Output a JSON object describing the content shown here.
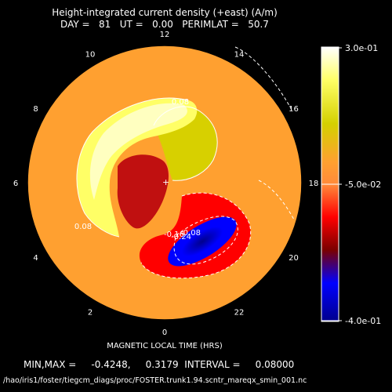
{
  "header": {
    "title": "Height-integrated current density (+east) (A/m)",
    "subtitle": "DAY =   81   UT =   0.00   PERIMLAT =   50.7"
  },
  "footer": {
    "xlabel": "MAGNETIC LOCAL TIME (HRS)",
    "minmax": "MIN,MAX =     -0.4248,     0.3179  INTERVAL =     0.08000",
    "filepath": "/hao/iris1/foster/tiegcm_diags/proc/FOSTER.trunk1.94.scntr_mareqx_smin_001.nc"
  },
  "colorbar": {
    "max_label": "3.0e-01",
    "mid_label": "-5.0e-02",
    "min_label": "-4.0e-01",
    "stops": [
      "#ffffff",
      "#ffff66",
      "#d4d000",
      "#ffa030",
      "#ff8a3a",
      "#ff0000",
      "#7a0000",
      "#0000ff",
      "#00008c"
    ]
  },
  "chart_data": {
    "type": "heatmap",
    "projection": "polar (magnetic local time)",
    "title": "Height-integrated current density (+east) (A/m)",
    "xlabel": "MAGNETIC LOCAL TIME (HRS)",
    "hour_ticks": [
      "0",
      "2",
      "4",
      "6",
      "8",
      "10",
      "12",
      "14",
      "16",
      "18",
      "20",
      "22"
    ],
    "min": -0.4248,
    "max": 0.3179,
    "interval": 0.08,
    "color_range": [
      -0.4,
      0.3
    ],
    "contour_labels": [
      "0.08",
      "0.08",
      "-0.08",
      "-0.24",
      "-0.16"
    ],
    "regions": [
      {
        "name": "positive dusk arc",
        "approx_value": 0.25
      },
      {
        "name": "positive dayside lobe",
        "approx_value": 0.12
      },
      {
        "name": "negative dawn-midnight cell",
        "approx_value": -0.4
      },
      {
        "name": "negative ring",
        "approx_value": -0.2
      }
    ],
    "colors": {
      "background_level": "#ffa030",
      "positive_high": "#ffffff",
      "positive_mid": "#ffff66",
      "negative_mid": "#ff0000",
      "negative_high": "#0000ff"
    }
  }
}
